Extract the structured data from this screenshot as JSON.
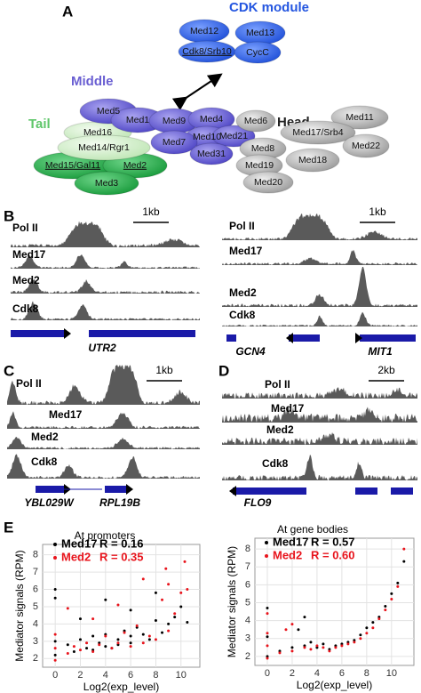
{
  "panel_a": {
    "label": "A",
    "modules": [
      "CDK module",
      "Middle",
      "Head",
      "Tail"
    ],
    "subunits": [
      "Med12",
      "Med13",
      "Cdk8/Srb10",
      "CycC",
      "Med16",
      "Med14/Rgr1",
      "Med15/Gal11",
      "Med2",
      "Med3",
      "Med5",
      "Med1",
      "Med9",
      "Med4",
      "Med10",
      "Med21",
      "Med7",
      "Med31",
      "Med6",
      "Med11",
      "Med17/Srb4",
      "Med8",
      "Med22",
      "Med19",
      "Med18",
      "Med20"
    ]
  },
  "panel_b": {
    "label": "B",
    "left": {
      "scale": "1kb",
      "tracks": [
        "Pol II",
        "Med17",
        "Med2",
        "Cdk8"
      ],
      "genes": [
        "UTR2"
      ]
    },
    "right": {
      "scale": "1kb",
      "tracks": [
        "Pol II",
        "Med17",
        "Med2",
        "Cdk8"
      ],
      "genes": [
        "GCN4",
        "MIT1"
      ]
    }
  },
  "panel_c": {
    "label": "C",
    "scale": "1kb",
    "tracks": [
      "Pol II",
      "Med17",
      "Med2",
      "Cdk8"
    ],
    "genes": [
      "YBL029W",
      "RPL19B"
    ]
  },
  "panel_d": {
    "label": "D",
    "scale": "2kb",
    "tracks": [
      "Pol II",
      "Med17",
      "Med2",
      "Cdk8"
    ],
    "genes": [
      "FLO9"
    ]
  },
  "panel_e": {
    "label": "E"
  },
  "chart_data": [
    {
      "type": "scatter",
      "title": "At promoters",
      "y_label": "Mediator signals (RPM)",
      "x_label": "Log2(exp_level)",
      "xlim": [
        -1,
        11.5
      ],
      "xticks": [
        0,
        2,
        4,
        6,
        8,
        10
      ],
      "ylim": [
        1.5,
        8.6
      ],
      "yticks": [
        2,
        3,
        4,
        5,
        6,
        7,
        8
      ],
      "grid": true,
      "annotations": [
        "R = 0.16",
        "R = 0.35"
      ],
      "series": [
        {
          "name": "Med17",
          "color": "#000000",
          "x": [
            0,
            0,
            0,
            1,
            1.5,
            2,
            2.5,
            3,
            3,
            3.5,
            4,
            4,
            4.5,
            5,
            5,
            5.5,
            6,
            6,
            6.5,
            7,
            7.5,
            8,
            8.5,
            9,
            9.5,
            10,
            10.5,
            0,
            2,
            4,
            6,
            8
          ],
          "values": [
            2.2,
            3,
            5.5,
            2.8,
            2.4,
            3.1,
            2.6,
            3.3,
            2.5,
            2.9,
            2.7,
            3.4,
            2.6,
            3.1,
            2.8,
            3.6,
            2.9,
            3.3,
            3.8,
            3.4,
            3.1,
            4.2,
            3.5,
            4,
            4.4,
            5,
            4.1,
            6,
            4.3,
            5.4,
            4.8,
            5.8
          ]
        },
        {
          "name": "Med2",
          "color": "#e8141c",
          "x": [
            0,
            0,
            0,
            1,
            1.5,
            2,
            2.5,
            3,
            3.5,
            4,
            4.5,
            5,
            5.5,
            6,
            6.5,
            7,
            7.5,
            8,
            8.5,
            9,
            9.5,
            10,
            10.5,
            1,
            3,
            5,
            7,
            9,
            10.3,
            8.8
          ],
          "values": [
            1.9,
            2.6,
            3.4,
            2.3,
            2.7,
            2.5,
            2.9,
            2.4,
            2.8,
            3.3,
            2.6,
            2.9,
            3.5,
            2.7,
            3.9,
            2.9,
            3.3,
            3.1,
            5.4,
            3.6,
            4.6,
            5.8,
            6,
            4.9,
            4.3,
            5.1,
            6.6,
            6.3,
            7.6,
            7.2
          ]
        }
      ]
    },
    {
      "type": "scatter",
      "title": "At gene bodies",
      "y_label": "Mediator signals (RPM)",
      "x_label": "Log2(exp_level)",
      "xlim": [
        -1,
        11.8
      ],
      "xticks": [
        0,
        2,
        4,
        6,
        8,
        10
      ],
      "ylim": [
        1.5,
        8.6
      ],
      "yticks": [
        2,
        3,
        4,
        5,
        6,
        7,
        8
      ],
      "grid": true,
      "annotations": [
        "R = 0.57",
        "R = 0.60"
      ],
      "series": [
        {
          "name": "Med17",
          "color": "#000000",
          "x": [
            0,
            0,
            0,
            1,
            2,
            3,
            3.5,
            4,
            4.5,
            5,
            5.5,
            6,
            6.5,
            7,
            7.5,
            8,
            8.5,
            9,
            9.5,
            10,
            10.5,
            11,
            2.5,
            3
          ],
          "values": [
            2,
            3.1,
            4.7,
            2.3,
            2.5,
            2.6,
            2.8,
            2.5,
            2.7,
            2.4,
            2.6,
            2.7,
            2.8,
            2.9,
            3.2,
            3.6,
            3.9,
            4.2,
            4.8,
            5.5,
            6.1,
            7.3,
            3.5,
            4.2
          ]
        },
        {
          "name": "Med2",
          "color": "#e8141c",
          "x": [
            0,
            0,
            0,
            0,
            1,
            2,
            3,
            3.5,
            4,
            4.5,
            5,
            5.5,
            6,
            6.5,
            7,
            7.5,
            8,
            8.5,
            9,
            9.5,
            10,
            10.5,
            11,
            2,
            1.5
          ],
          "values": [
            1.9,
            2.6,
            3.3,
            4.4,
            2.2,
            2.3,
            2.5,
            2.4,
            2.6,
            2.5,
            2.3,
            2.5,
            2.6,
            2.7,
            2.8,
            3,
            3.3,
            3.6,
            4.1,
            4.6,
            5.2,
            5.9,
            8,
            3.8,
            3.5
          ]
        }
      ]
    }
  ]
}
